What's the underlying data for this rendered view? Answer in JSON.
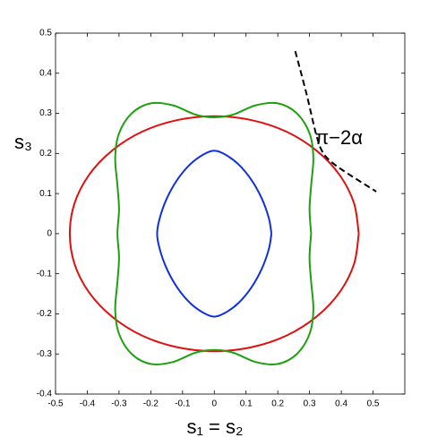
{
  "chart_data": {
    "type": "line",
    "xlabel": "s₁ = s₂",
    "ylabel": "s₃",
    "annotation": "π−2α",
    "xlim": [
      -0.5,
      0.6
    ],
    "ylim": [
      -0.4,
      0.5
    ],
    "xticks": [
      -0.5,
      -0.4,
      -0.3,
      -0.2,
      -0.1,
      0,
      0.1,
      0.2,
      0.3,
      0.4,
      0.5
    ],
    "yticks": [
      -0.4,
      -0.3,
      -0.2,
      -0.1,
      0,
      0.1,
      0.2,
      0.3,
      0.4,
      0.5
    ],
    "series": [
      {
        "color": "#e01010",
        "dashed": false,
        "x": [
          0.455,
          0.44,
          0.394,
          0.322,
          0.228,
          0.118,
          0,
          -0.118,
          -0.228,
          -0.322,
          -0.394,
          -0.44,
          -0.455,
          -0.44,
          -0.394,
          -0.322,
          -0.228,
          -0.118,
          0,
          0.118,
          0.228,
          0.322,
          0.394,
          0.44,
          0.455
        ],
        "values": [
          0,
          0.076,
          0.147,
          0.207,
          0.254,
          0.283,
          0.293,
          0.283,
          0.254,
          0.207,
          0.147,
          0.076,
          0,
          -0.076,
          -0.147,
          -0.207,
          -0.254,
          -0.283,
          -0.293,
          -0.283,
          -0.254,
          -0.207,
          -0.147,
          -0.076,
          0
        ]
      },
      {
        "color": "#20a010",
        "dashed": false,
        "x": [
          0.305,
          0.3,
          0.305,
          0.312,
          0.3,
          0.26,
          0.2,
          0.13,
          0.06,
          0,
          -0.06,
          -0.13,
          -0.2,
          -0.26,
          -0.3,
          -0.312,
          -0.305,
          -0.3,
          -0.305,
          -0.3,
          -0.305,
          -0.312,
          -0.3,
          -0.26,
          -0.2,
          -0.13,
          -0.06,
          0,
          0.06,
          0.13,
          0.2,
          0.26,
          0.3,
          0.312,
          0.305,
          0.3,
          0.305
        ],
        "values": [
          0,
          0.06,
          0.12,
          0.19,
          0.25,
          0.3,
          0.325,
          0.32,
          0.297,
          0.29,
          0.297,
          0.32,
          0.325,
          0.3,
          0.25,
          0.19,
          0.12,
          0.06,
          0,
          -0.06,
          -0.12,
          -0.19,
          -0.25,
          -0.3,
          -0.325,
          -0.32,
          -0.297,
          -0.29,
          -0.297,
          -0.32,
          -0.325,
          -0.3,
          -0.25,
          -0.19,
          -0.12,
          -0.06,
          0
        ]
      },
      {
        "color": "#1030e0",
        "dashed": false,
        "x": [
          0.18,
          0.172,
          0.15,
          0.117,
          0.076,
          0.033,
          0,
          -0.033,
          -0.076,
          -0.117,
          -0.15,
          -0.172,
          -0.18,
          -0.172,
          -0.15,
          -0.117,
          -0.076,
          -0.033,
          0,
          0.033,
          0.076,
          0.117,
          0.15,
          0.172,
          0.18
        ],
        "values": [
          0,
          0.038,
          0.087,
          0.134,
          0.173,
          0.198,
          0.207,
          0.198,
          0.173,
          0.134,
          0.087,
          0.038,
          0,
          -0.038,
          -0.087,
          -0.134,
          -0.173,
          -0.198,
          -0.207,
          -0.198,
          -0.173,
          -0.134,
          -0.087,
          -0.038,
          0
        ]
      },
      {
        "color": "#000000",
        "dashed": true,
        "x": [
          0.255,
          0.29,
          0.32,
          0.34,
          0.37,
          0.42,
          0.51
        ],
        "values": [
          0.455,
          0.35,
          0.25,
          0.205,
          0.178,
          0.15,
          0.105
        ]
      }
    ]
  }
}
